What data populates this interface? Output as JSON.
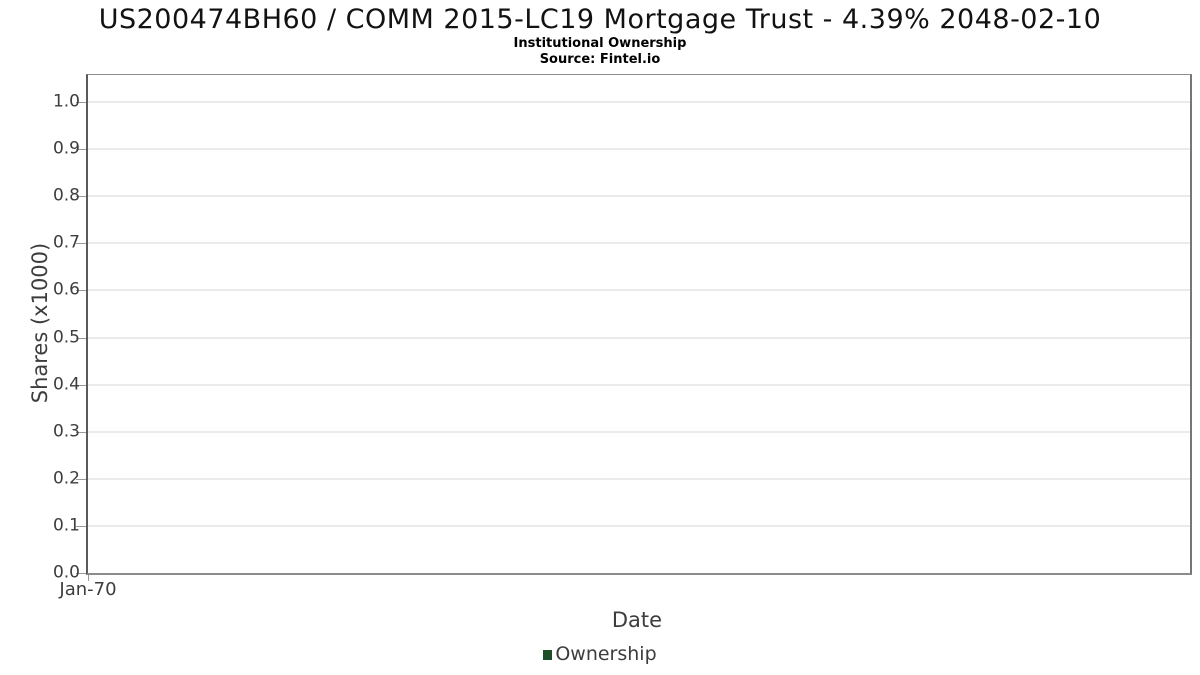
{
  "header": {
    "title": "US200474BH60 / COMM 2015-LC19 Mortgage Trust - 4.39% 2048-02-10",
    "subtitle": "Institutional Ownership",
    "source": "Source: Fintel.io"
  },
  "chart_data": {
    "type": "line",
    "title": "US200474BH60 / COMM 2015-LC19 Mortgage Trust - 4.39% 2048-02-10",
    "subtitle": "Institutional Ownership",
    "source": "Source: Fintel.io",
    "xlabel": "Date",
    "ylabel": "Shares (x1000)",
    "ylim": [
      0.0,
      1.05
    ],
    "yticks": [
      "0.0",
      "0.1",
      "0.2",
      "0.3",
      "0.4",
      "0.5",
      "0.6",
      "0.7",
      "0.8",
      "0.9",
      "1.0"
    ],
    "xticks": [
      "Jan-70"
    ],
    "grid": true,
    "legend_position": "bottom",
    "series": [
      {
        "name": "Ownership",
        "color": "#1e4d28",
        "x": [],
        "values": []
      }
    ]
  },
  "colors": {
    "ownership_green": "#1e4d28",
    "gridline": "#ebebeb",
    "axis_text": "#3d3d3d",
    "title_text": "#121212"
  }
}
